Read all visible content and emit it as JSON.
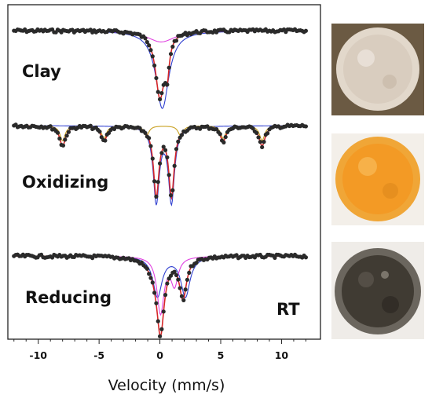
{
  "chart_data": {
    "type": "scatter",
    "xlabel": "Velocity (mm/s)",
    "xlim": [
      -12.5,
      13.2
    ],
    "xticks": [
      -10,
      -5,
      0,
      5,
      10
    ],
    "xtick_labels": [
      "-10",
      "-5",
      "0",
      "5",
      "10"
    ],
    "grid": false,
    "legend": "none",
    "annotation": "RT",
    "panels": [
      {
        "label": "Clay",
        "photo_color": "beige",
        "series": [
          {
            "kind": "data",
            "color": "#2a2a2a",
            "sites": [
              {
                "center": 0.0,
                "width": 0.9,
                "depth": 0.52
              },
              {
                "center": 0.6,
                "width": 0.4,
                "depth": 0.25
              }
            ]
          },
          {
            "kind": "fit",
            "color": "#d62728",
            "sites": [
              {
                "center": 0.0,
                "width": 0.9,
                "depth": 0.52
              },
              {
                "center": 0.6,
                "width": 0.4,
                "depth": 0.25
              }
            ]
          },
          {
            "kind": "component",
            "color": "#3040d0",
            "sites": [
              {
                "center": 0.2,
                "width": 1.3,
                "depth": 0.62
              }
            ]
          },
          {
            "kind": "component",
            "color": "#e040e0",
            "sites": [
              {
                "center": 0.1,
                "width": 2.8,
                "depth": 0.09
              }
            ]
          }
        ]
      },
      {
        "label": "Oxidizing",
        "photo_color": "orange",
        "series": [
          {
            "kind": "data",
            "color": "#2a2a2a",
            "sites": [
              {
                "center": -0.3,
                "width": 0.55,
                "depth": 0.55
              },
              {
                "center": 0.95,
                "width": 0.55,
                "depth": 0.55
              },
              {
                "center": -8.0,
                "width": 0.6,
                "depth": 0.16
              },
              {
                "center": -4.6,
                "width": 0.6,
                "depth": 0.12
              },
              {
                "center": 5.2,
                "width": 0.6,
                "depth": 0.12
              },
              {
                "center": 8.4,
                "width": 0.6,
                "depth": 0.16
              }
            ]
          },
          {
            "kind": "fit",
            "color": "#d62728",
            "sites": [
              {
                "center": -0.3,
                "width": 0.55,
                "depth": 0.55
              },
              {
                "center": 0.95,
                "width": 0.55,
                "depth": 0.55
              },
              {
                "center": -8.0,
                "width": 0.6,
                "depth": 0.16
              },
              {
                "center": -4.6,
                "width": 0.6,
                "depth": 0.12
              },
              {
                "center": 5.2,
                "width": 0.6,
                "depth": 0.12
              },
              {
                "center": 8.4,
                "width": 0.6,
                "depth": 0.16
              }
            ]
          },
          {
            "kind": "component",
            "color": "#3040d0",
            "sites": [
              {
                "center": -0.3,
                "width": 0.6,
                "depth": 0.6
              },
              {
                "center": 0.95,
                "width": 0.6,
                "depth": 0.6
              }
            ]
          },
          {
            "kind": "component",
            "color": "#c8a020",
            "sites": [
              {
                "center": -8.0,
                "width": 0.5,
                "depth": 0.12
              },
              {
                "center": -4.6,
                "width": 0.5,
                "depth": 0.1
              },
              {
                "center": -1.1,
                "width": 0.5,
                "depth": 0.08
              },
              {
                "center": 1.7,
                "width": 0.5,
                "depth": 0.08
              },
              {
                "center": 5.2,
                "width": 0.5,
                "depth": 0.1
              },
              {
                "center": 8.4,
                "width": 0.5,
                "depth": 0.12
              }
            ]
          }
        ]
      },
      {
        "label": "Reducing",
        "photo_color": "dark-grey",
        "series": [
          {
            "kind": "data",
            "color": "#2a2a2a",
            "sites": [
              {
                "center": 0.05,
                "width": 0.7,
                "depth": 0.52
              },
              {
                "center": 1.9,
                "width": 0.7,
                "depth": 0.32
              },
              {
                "center": -0.2,
                "width": 1.6,
                "depth": 0.12
              }
            ]
          },
          {
            "kind": "fit",
            "color": "#d62728",
            "sites": [
              {
                "center": 0.05,
                "width": 0.7,
                "depth": 0.52
              },
              {
                "center": 1.9,
                "width": 0.7,
                "depth": 0.32
              },
              {
                "center": -0.2,
                "width": 1.6,
                "depth": 0.12
              }
            ]
          },
          {
            "kind": "component",
            "color": "#3040d0",
            "sites": [
              {
                "center": -0.2,
                "width": 0.9,
                "depth": 0.32
              },
              {
                "center": 2.1,
                "width": 0.9,
                "depth": 0.32
              }
            ]
          },
          {
            "kind": "component",
            "color": "#e040e0",
            "sites": [
              {
                "center": 0.05,
                "width": 0.7,
                "depth": 0.45
              },
              {
                "center": 1.2,
                "width": 0.7,
                "depth": 0.22
              }
            ]
          }
        ]
      }
    ]
  }
}
